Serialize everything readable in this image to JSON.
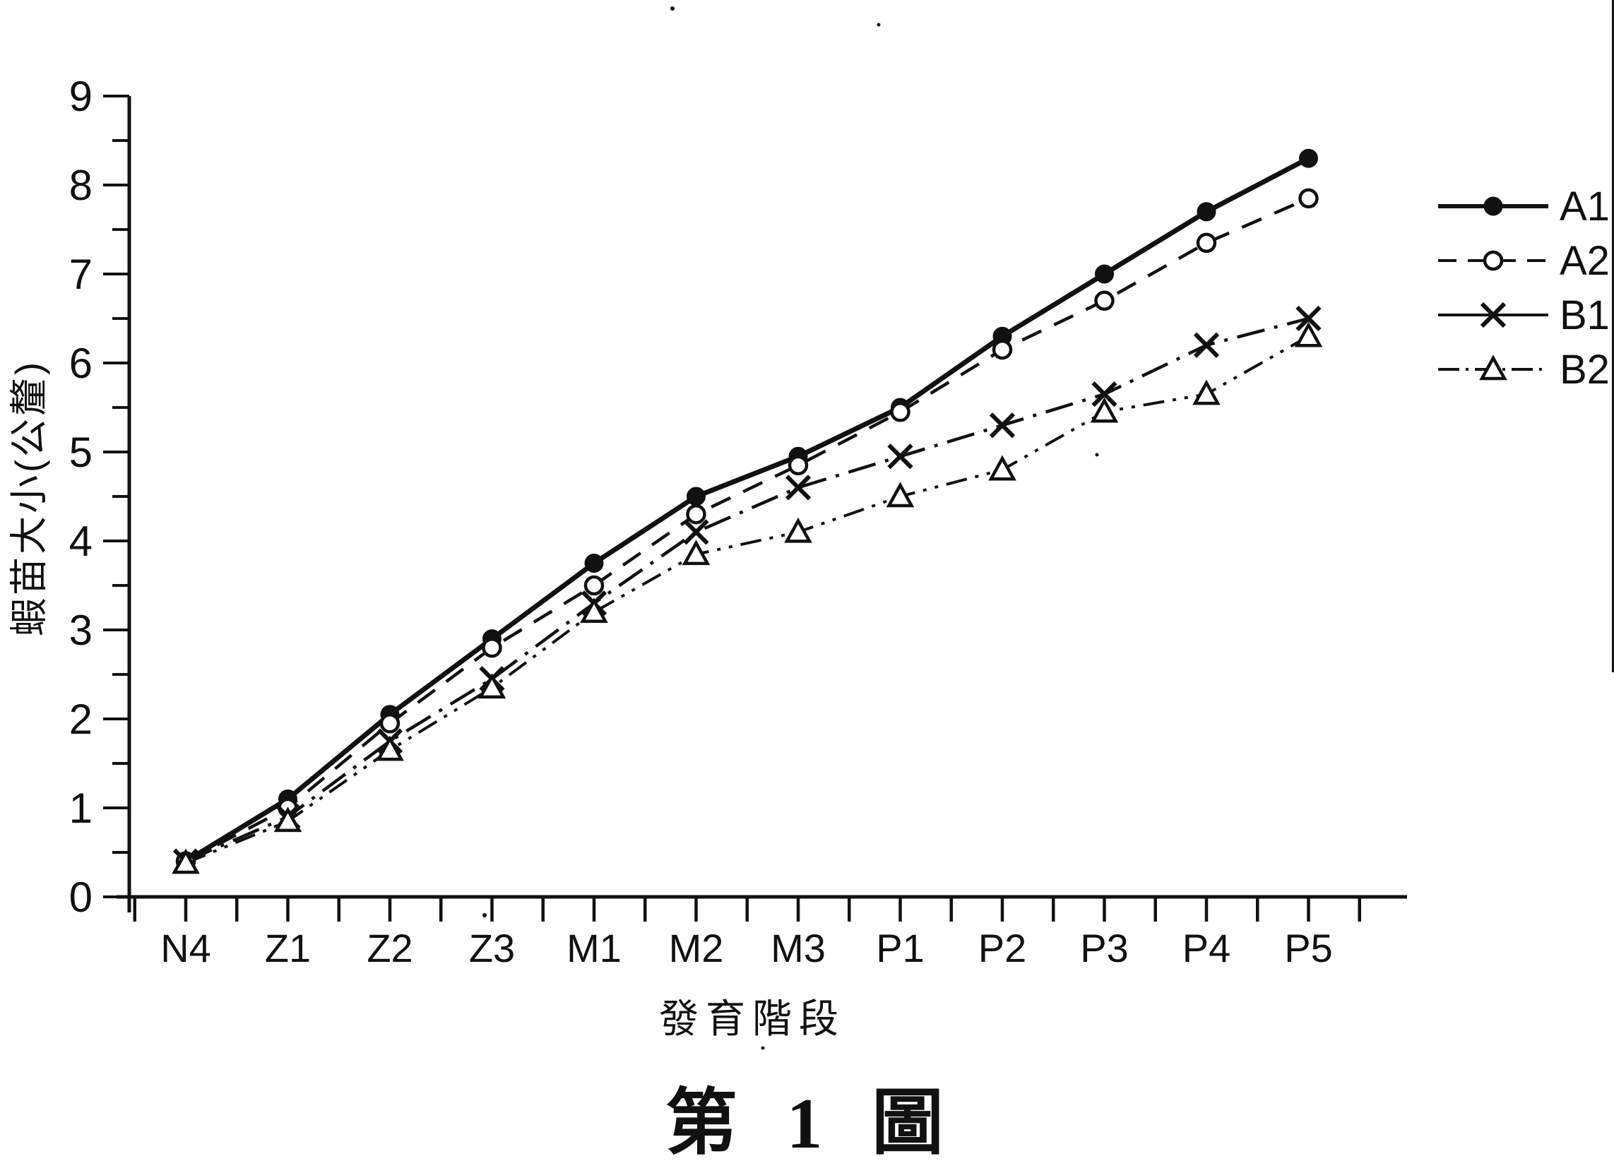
{
  "colors": {
    "ink": "#111111",
    "paper": "#ffffff"
  },
  "chart_data": {
    "type": "line",
    "title": "第 1 圖",
    "xlabel": "發育階段",
    "ylabel": "蝦苗大小(公釐)",
    "categories": [
      "N4",
      "Z1",
      "Z2",
      "Z3",
      "M1",
      "M2",
      "M3",
      "P1",
      "P2",
      "P3",
      "P4",
      "P5"
    ],
    "ylim": [
      0,
      9
    ],
    "yticks": [
      0,
      1,
      2,
      3,
      4,
      5,
      6,
      7,
      8,
      9
    ],
    "grid": false,
    "legend_position": "right",
    "series": [
      {
        "name": "A1",
        "marker": "filled-circle",
        "line": "solid",
        "values": [
          0.4,
          1.1,
          2.05,
          2.9,
          3.75,
          4.5,
          4.95,
          5.5,
          6.3,
          7.0,
          7.7,
          8.3
        ]
      },
      {
        "name": "A2",
        "marker": "open-circle",
        "line": "dashed",
        "values": [
          0.4,
          1.0,
          1.95,
          2.8,
          3.5,
          4.3,
          4.85,
          5.45,
          6.15,
          6.7,
          7.35,
          7.85
        ]
      },
      {
        "name": "B1",
        "marker": "x",
        "line": "dash-dot",
        "values": [
          0.4,
          0.9,
          1.75,
          2.45,
          3.3,
          4.1,
          4.6,
          4.95,
          5.3,
          5.65,
          6.2,
          6.5
        ]
      },
      {
        "name": "B2",
        "marker": "open-triangle",
        "line": "dash-dot-dot",
        "values": [
          0.38,
          0.85,
          1.65,
          2.35,
          3.2,
          3.85,
          4.1,
          4.5,
          4.8,
          5.45,
          5.65,
          6.3
        ]
      }
    ]
  }
}
